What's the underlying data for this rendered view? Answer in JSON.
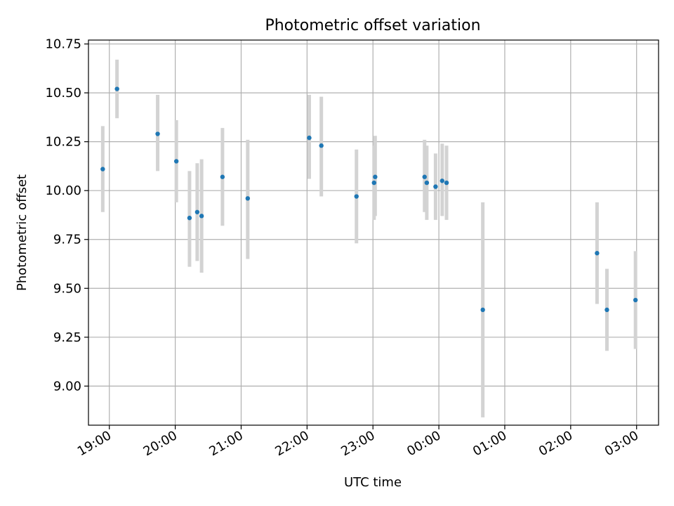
{
  "chart_data": {
    "type": "scatter",
    "title": "Photometric offset variation",
    "xlabel": "UTC time",
    "ylabel": "Photometric offset",
    "x_unit": "UTC hh:mm (consecutive night, 18:00 to 03:00)",
    "xlim": [
      "18:41",
      "03:20"
    ],
    "ylim": [
      8.8,
      10.77
    ],
    "grid": true,
    "legend": "none",
    "colors": {
      "marker": "#1f77b4",
      "errorbar": "#d3d3d3",
      "grid": "#b0b0b0"
    },
    "x_ticks": [
      "19:00",
      "20:00",
      "21:00",
      "22:00",
      "23:00",
      "00:00",
      "01:00",
      "02:00",
      "03:00"
    ],
    "y_ticks": [
      "9.00",
      "9.25",
      "9.50",
      "9.75",
      "10.00",
      "10.25",
      "10.50",
      "10.75"
    ],
    "points": [
      {
        "x": "18:54",
        "y": 10.11,
        "ylow": 9.89,
        "yhigh": 10.33
      },
      {
        "x": "19:07",
        "y": 10.52,
        "ylow": 10.37,
        "yhigh": 10.67
      },
      {
        "x": "19:44",
        "y": 10.29,
        "ylow": 10.1,
        "yhigh": 10.49
      },
      {
        "x": "20:01",
        "y": 10.15,
        "ylow": 9.94,
        "yhigh": 10.36
      },
      {
        "x": "20:13",
        "y": 9.86,
        "ylow": 9.61,
        "yhigh": 10.1
      },
      {
        "x": "20:20",
        "y": 9.89,
        "ylow": 9.64,
        "yhigh": 10.14
      },
      {
        "x": "20:24",
        "y": 9.87,
        "ylow": 9.58,
        "yhigh": 10.16
      },
      {
        "x": "20:43",
        "y": 10.07,
        "ylow": 9.82,
        "yhigh": 10.32
      },
      {
        "x": "21:06",
        "y": 9.96,
        "ylow": 9.65,
        "yhigh": 10.26
      },
      {
        "x": "22:02",
        "y": 10.27,
        "ylow": 10.06,
        "yhigh": 10.49
      },
      {
        "x": "22:13",
        "y": 10.23,
        "ylow": 9.97,
        "yhigh": 10.48
      },
      {
        "x": "22:45",
        "y": 9.97,
        "ylow": 9.73,
        "yhigh": 10.21
      },
      {
        "x": "23:01",
        "y": 10.04,
        "ylow": 9.85,
        "yhigh": 10.23
      },
      {
        "x": "23:02",
        "y": 10.07,
        "ylow": 9.87,
        "yhigh": 10.28
      },
      {
        "x": "23:47",
        "y": 10.07,
        "ylow": 9.89,
        "yhigh": 10.26
      },
      {
        "x": "23:49",
        "y": 10.04,
        "ylow": 9.85,
        "yhigh": 10.23
      },
      {
        "x": "23:57",
        "y": 10.02,
        "ylow": 9.85,
        "yhigh": 10.19
      },
      {
        "x": "00:03",
        "y": 10.05,
        "ylow": 9.87,
        "yhigh": 10.24
      },
      {
        "x": "00:07",
        "y": 10.04,
        "ylow": 9.85,
        "yhigh": 10.23
      },
      {
        "x": "00:40",
        "y": 9.39,
        "ylow": 8.84,
        "yhigh": 9.94
      },
      {
        "x": "02:24",
        "y": 9.68,
        "ylow": 9.42,
        "yhigh": 9.94
      },
      {
        "x": "02:33",
        "y": 9.39,
        "ylow": 9.18,
        "yhigh": 9.6
      },
      {
        "x": "02:59",
        "y": 9.44,
        "ylow": 9.19,
        "yhigh": 9.69
      }
    ]
  }
}
